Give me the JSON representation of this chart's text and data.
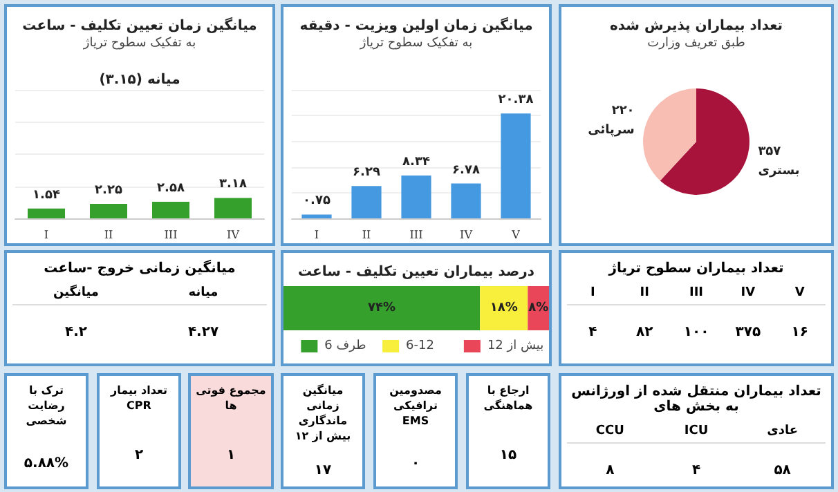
{
  "chart_data": [
    {
      "type": "bar",
      "title": "میانگین زمان تعیین تکلیف - ساعت",
      "subtitle": "به تفکیک سطوح تریاژ",
      "annotations": [
        "میانه (۳.۱۵)"
      ],
      "categories": [
        "I",
        "II",
        "III",
        "IV"
      ],
      "values": [
        1.54,
        2.25,
        2.58,
        3.18
      ],
      "value_labels": [
        "۱.۵۴",
        "۲.۲۵",
        "۲.۵۸",
        "۳.۱۸"
      ],
      "color": "#36a02d",
      "ylim": [
        0,
        20
      ],
      "yticks": [
        {
          "value": 0,
          "label": null
        },
        {
          "value": 5,
          "label": null
        },
        {
          "value": 10,
          "label": null
        },
        {
          "value": 15,
          "label": null
        },
        {
          "value": 20,
          "label": null
        }
      ],
      "grid": "y",
      "tick_labels": "x"
    },
    {
      "type": "bar",
      "title": "میانگین زمان اولین ویزیت - دقیقه",
      "subtitle": "به تفکیک سطوح تریاژ",
      "categories": [
        "I",
        "II",
        "III",
        "IV",
        "V"
      ],
      "values": [
        0.75,
        6.29,
        8.34,
        6.78,
        20.38
      ],
      "value_labels": [
        "۰.۷۵",
        "۶.۲۹",
        "۸.۳۴",
        "۶.۷۸",
        "۲۰.۳۸"
      ],
      "color": "#4599e0",
      "grid": "y",
      "tick_labels": "x"
    },
    {
      "type": "pie",
      "title": "تعداد بیماران پذیرش شده",
      "subtitle": "طبق تعریف وزارت",
      "categories": [
        "بستری",
        "سرپائی"
      ],
      "values": [
        357,
        220
      ],
      "value_labels": [
        "۳۵۷",
        "۲۲۰"
      ],
      "colors": [
        "#a8133b",
        "#f8beb3"
      ]
    },
    {
      "type": "other",
      "title": "میانگین زمانی خروج -ساعت",
      "categories": [
        "میانگین",
        "میانه"
      ],
      "values": [
        4.2,
        4.27
      ],
      "value_labels": [
        "۴.۲",
        "۴.۲۷"
      ]
    },
    {
      "type": "bar",
      "title": "درصد بیماران تعیین تکلیف - ساعت",
      "orientation": "horizontal",
      "stacked": true,
      "categories": [
        null
      ],
      "xlim": [
        0,
        100
      ],
      "tick_labels": false,
      "legend": "bottom",
      "series": [
        {
          "name": "طرف 6",
          "color": "#36a02d",
          "values": [
            74
          ],
          "value_labels": [
            "۷۴%"
          ]
        },
        {
          "name": "6-12",
          "color": "#f7ef3c",
          "values": [
            18
          ],
          "value_labels": [
            "۱۸%"
          ]
        },
        {
          "name": "بیش از 12",
          "color": "#e9465a",
          "values": [
            8
          ],
          "value_labels": [
            "۸%"
          ]
        }
      ]
    },
    {
      "type": "other",
      "title": "تعداد بیماران سطوح تریاژ",
      "categories": [
        "I",
        "II",
        "III",
        "IV",
        "V"
      ],
      "values": [
        4,
        82,
        100,
        375,
        16
      ],
      "value_labels": [
        "۴",
        "۸۲",
        "۱۰۰",
        "۳۷۵",
        "۱۶"
      ]
    },
    {
      "type": "other",
      "title": "ترک با رضایت شخصی",
      "values": [
        5.88
      ],
      "value_labels": [
        "۵.۸۸%"
      ]
    },
    {
      "type": "other",
      "title": "تعداد بیمار CPR",
      "values": [
        2
      ],
      "value_labels": [
        "۲"
      ]
    },
    {
      "type": "other",
      "title": "مجموع فوتی ها",
      "values": [
        1
      ],
      "value_labels": [
        "۱"
      ],
      "color": "#fadbdc"
    },
    {
      "type": "other",
      "title": "میانگین زمانی ماندگاری بیش از ۱۲",
      "values": [
        17
      ],
      "value_labels": [
        "۱۷"
      ]
    },
    {
      "type": "other",
      "title": "مصدومین ترافیکی EMS",
      "values": [
        0
      ],
      "value_labels": [
        "۰"
      ]
    },
    {
      "type": "other",
      "title": "ارجاع با هماهنگی",
      "values": [
        15
      ],
      "value_labels": [
        "۱۵"
      ]
    },
    {
      "type": "other",
      "title": "تعداد بیماران منتقل شده از اورژانس به بخش های",
      "categories": [
        "CCU",
        "ICU",
        "عادی"
      ],
      "values": [
        8,
        4,
        58
      ],
      "value_labels": [
        "۸",
        "۴",
        "۵۸"
      ]
    }
  ]
}
